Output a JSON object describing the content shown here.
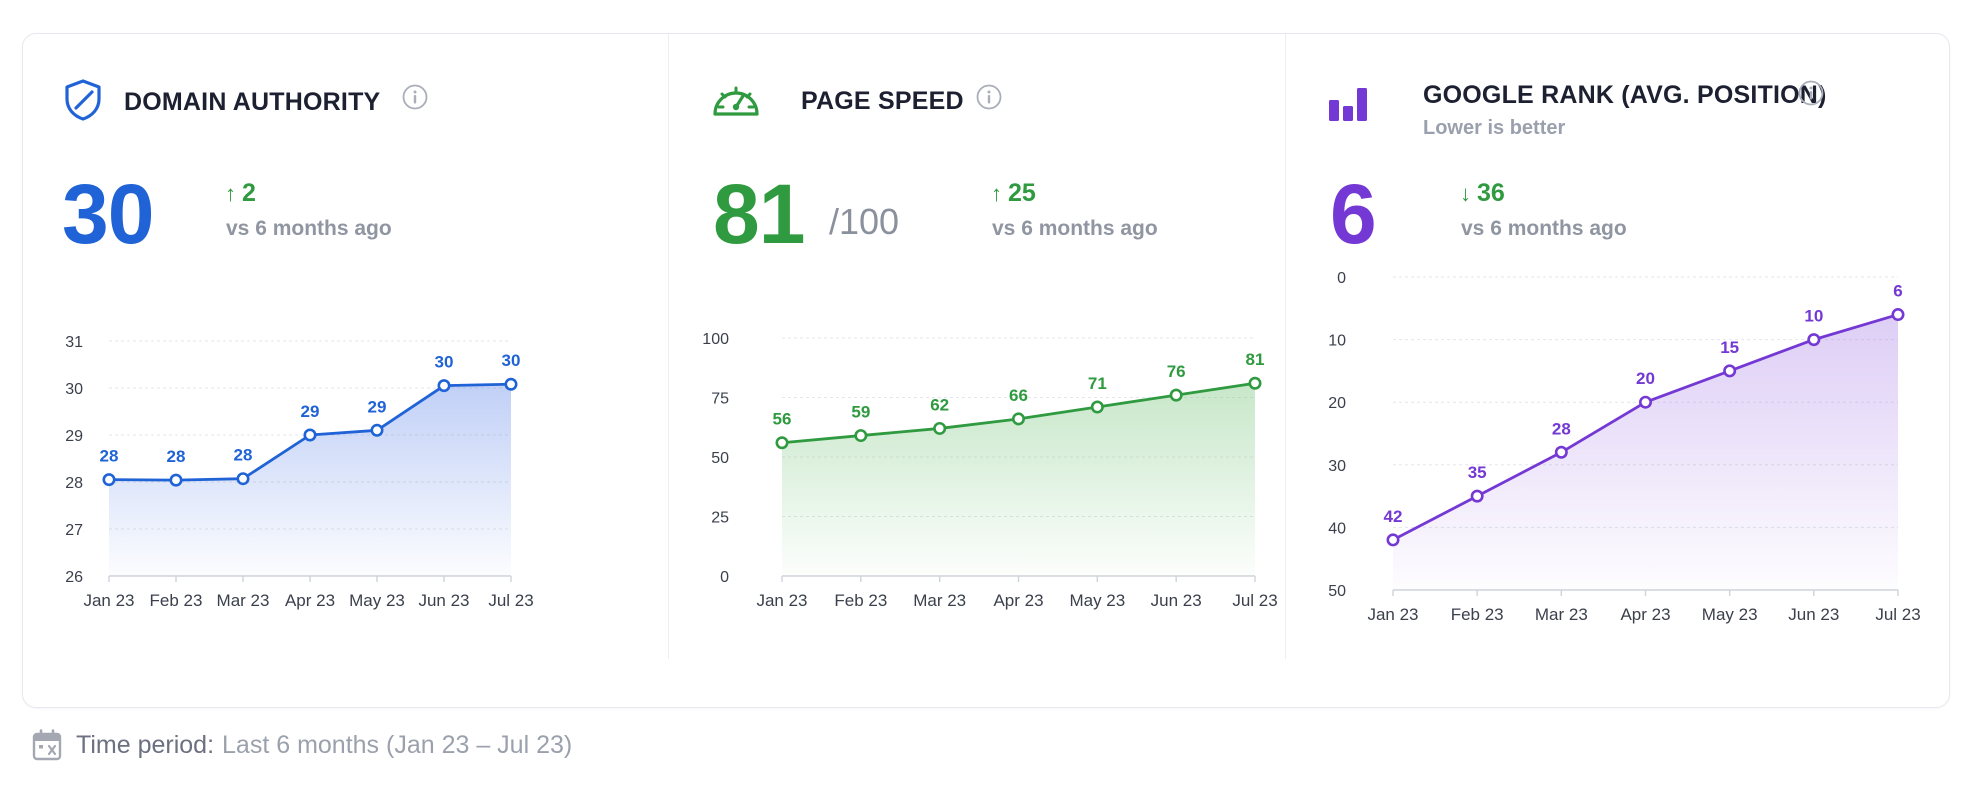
{
  "panels": [
    {
      "title": "DOMAIN AUTHORITY",
      "subtitle": "",
      "icon": "shield-icon",
      "color": "#1f63d6",
      "value": "30",
      "value_suffix": "",
      "delta_dir": "up",
      "delta": "2",
      "delta_note": "vs 6 months ago"
    },
    {
      "title": "PAGE SPEED",
      "subtitle": "",
      "icon": "speedometer-icon",
      "color": "#2f9a3f",
      "value": "81",
      "value_suffix": "/100",
      "delta_dir": "up",
      "delta": "25",
      "delta_note": "vs 6 months ago"
    },
    {
      "title": "GOOGLE RANK (AVG. POSITION)",
      "subtitle": "Lower is better",
      "icon": "bar-chart-icon",
      "color": "#7438d4",
      "value": "6",
      "value_suffix": "",
      "delta_dir": "down",
      "delta": "36",
      "delta_note": "vs 6 months ago"
    }
  ],
  "chart_data": [
    {
      "type": "area",
      "categories": [
        "Jan 23",
        "Feb 23",
        "Mar 23",
        "Apr 23",
        "May 23",
        "Jun 23",
        "Jul 23"
      ],
      "values": [
        28.05,
        28.04,
        28.07,
        29.0,
        29.1,
        30.05,
        30.08
      ],
      "data_labels": [
        "28",
        "28",
        "28",
        "29",
        "29",
        "30",
        "30"
      ],
      "yticks": [
        26,
        27,
        28,
        29,
        30,
        31
      ],
      "ylim": [
        26,
        31
      ],
      "inverted": false,
      "grid": true,
      "color": "#1f63d6",
      "fill": "#5a82e8"
    },
    {
      "type": "area",
      "categories": [
        "Jan 23",
        "Feb 23",
        "Mar 23",
        "Apr 23",
        "May 23",
        "Jun 23",
        "Jul 23"
      ],
      "values": [
        56,
        59,
        62,
        66,
        71,
        76,
        81
      ],
      "data_labels": [
        "56",
        "59",
        "62",
        "66",
        "71",
        "76",
        "81"
      ],
      "yticks": [
        0,
        25,
        50,
        75,
        100
      ],
      "ylim": [
        0,
        100
      ],
      "inverted": false,
      "grid": true,
      "color": "#2f9a3f",
      "fill": "#6cc071"
    },
    {
      "type": "area",
      "categories": [
        "Jan 23",
        "Feb 23",
        "Mar 23",
        "Apr 23",
        "May 23",
        "Jun 23",
        "Jul 23"
      ],
      "values": [
        42,
        35,
        28,
        20,
        15,
        10,
        6
      ],
      "data_labels": [
        "42",
        "35",
        "28",
        "20",
        "15",
        "10",
        "6"
      ],
      "yticks": [
        0,
        10,
        20,
        30,
        40,
        50
      ],
      "ylim": [
        0,
        50
      ],
      "inverted": true,
      "grid": true,
      "color": "#7438d4",
      "fill": "#a77de6"
    }
  ],
  "footer": {
    "icon": "calendar-icon",
    "label": "Time period:",
    "value": "Last 6 months (Jan 23 – Jul 23)"
  }
}
